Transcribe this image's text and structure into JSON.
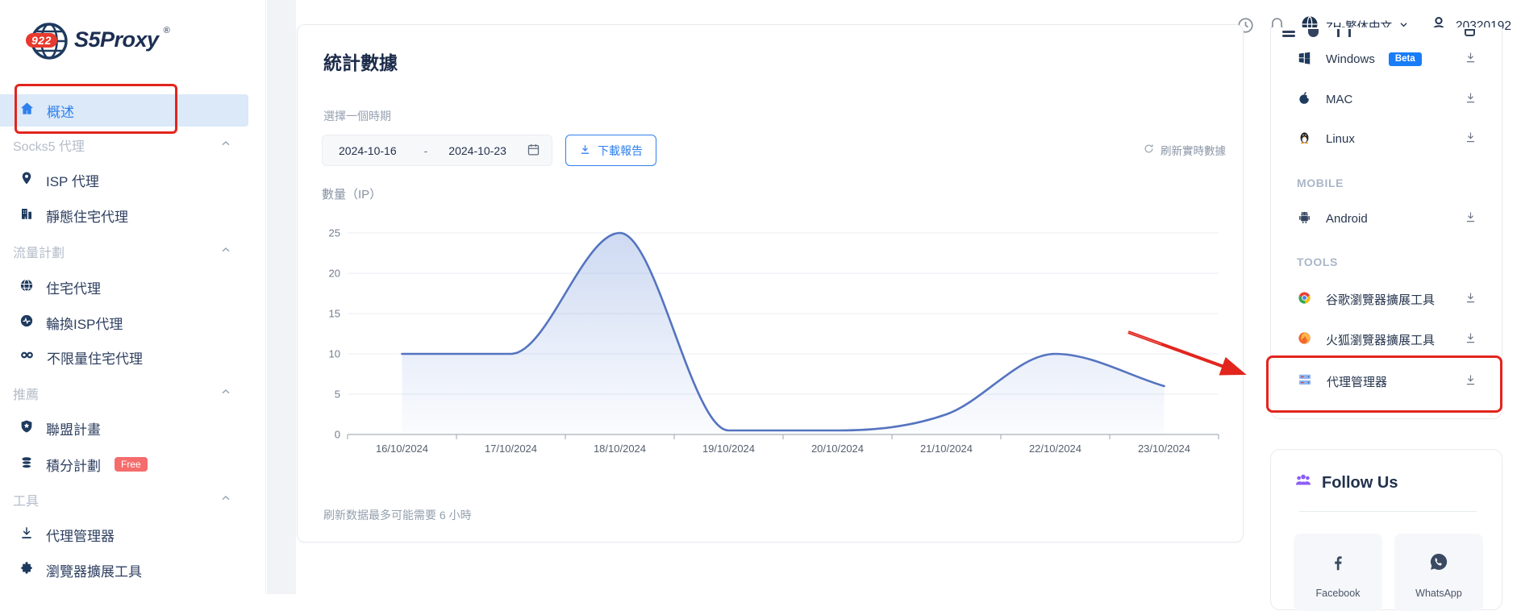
{
  "header": {
    "language_label": "ZH-繁体中文",
    "user_id": "20320192"
  },
  "sidebar": {
    "logo_badge": "922",
    "logo_text": "S5Proxy",
    "logo_reg": "®",
    "items": [
      {
        "label": "概述",
        "type": "item",
        "active": true
      },
      {
        "label": "Socks5 代理",
        "type": "section"
      },
      {
        "label": "ISP 代理",
        "type": "item"
      },
      {
        "label": "靜態住宅代理",
        "type": "item"
      },
      {
        "label": "流量計劃",
        "type": "section"
      },
      {
        "label": "住宅代理",
        "type": "item"
      },
      {
        "label": "輪換ISP代理",
        "type": "item"
      },
      {
        "label": "不限量住宅代理",
        "type": "item"
      },
      {
        "label": "推薦",
        "type": "section"
      },
      {
        "label": "聯盟計畫",
        "type": "item"
      },
      {
        "label": "積分計劃",
        "type": "item",
        "badge": "Free"
      },
      {
        "label": "工具",
        "type": "section"
      },
      {
        "label": "代理管理器",
        "type": "item"
      },
      {
        "label": "瀏覽器擴展工具",
        "type": "item"
      }
    ]
  },
  "main": {
    "title": "統計數據",
    "period_label": "選擇一個時期",
    "date_start": "2024-10-16",
    "date_separator": "-",
    "date_end": "2024-10-23",
    "download_report": "下載報告",
    "refresh_label": "刷新實時數據",
    "footer_note": "刷新数据最多可能需要 6 小時"
  },
  "chart_data": {
    "type": "area",
    "title": "數量（IP）",
    "ylabel": "數量（IP）",
    "x": [
      "16/10/2024",
      "17/10/2024",
      "18/10/2024",
      "19/10/2024",
      "20/10/2024",
      "21/10/2024",
      "22/10/2024",
      "23/10/2024"
    ],
    "values": [
      10,
      10,
      25,
      0.5,
      0.5,
      2.5,
      10,
      6
    ],
    "ylim": [
      0,
      25
    ],
    "yticks": [
      0,
      5,
      10,
      15,
      20,
      25
    ],
    "grid": true,
    "legend": "none",
    "line_color": "#5574c0",
    "fill_color": "#7e9ede"
  },
  "downloads": {
    "items": [
      {
        "label": "Windows",
        "badge": "Beta"
      },
      {
        "label": "MAC"
      },
      {
        "label": "Linux"
      },
      {
        "label": "MOBILE",
        "type": "section"
      },
      {
        "label": "Android"
      },
      {
        "label": "TOOLS",
        "type": "section"
      },
      {
        "label": "谷歌瀏覽器擴展工具"
      },
      {
        "label": "火狐瀏覽器擴展工具"
      },
      {
        "label": "代理管理器",
        "highlighted": true
      }
    ]
  },
  "follow": {
    "title": "Follow Us",
    "facebook": "Facebook",
    "whatsapp": "WhatsApp"
  },
  "colors": {
    "accent_blue": "#2f80ed",
    "annotation_red": "#e2251d",
    "active_bg": "#dbe9f8",
    "beta_badge": "#187df7",
    "free_badge": "#f56c6c"
  }
}
